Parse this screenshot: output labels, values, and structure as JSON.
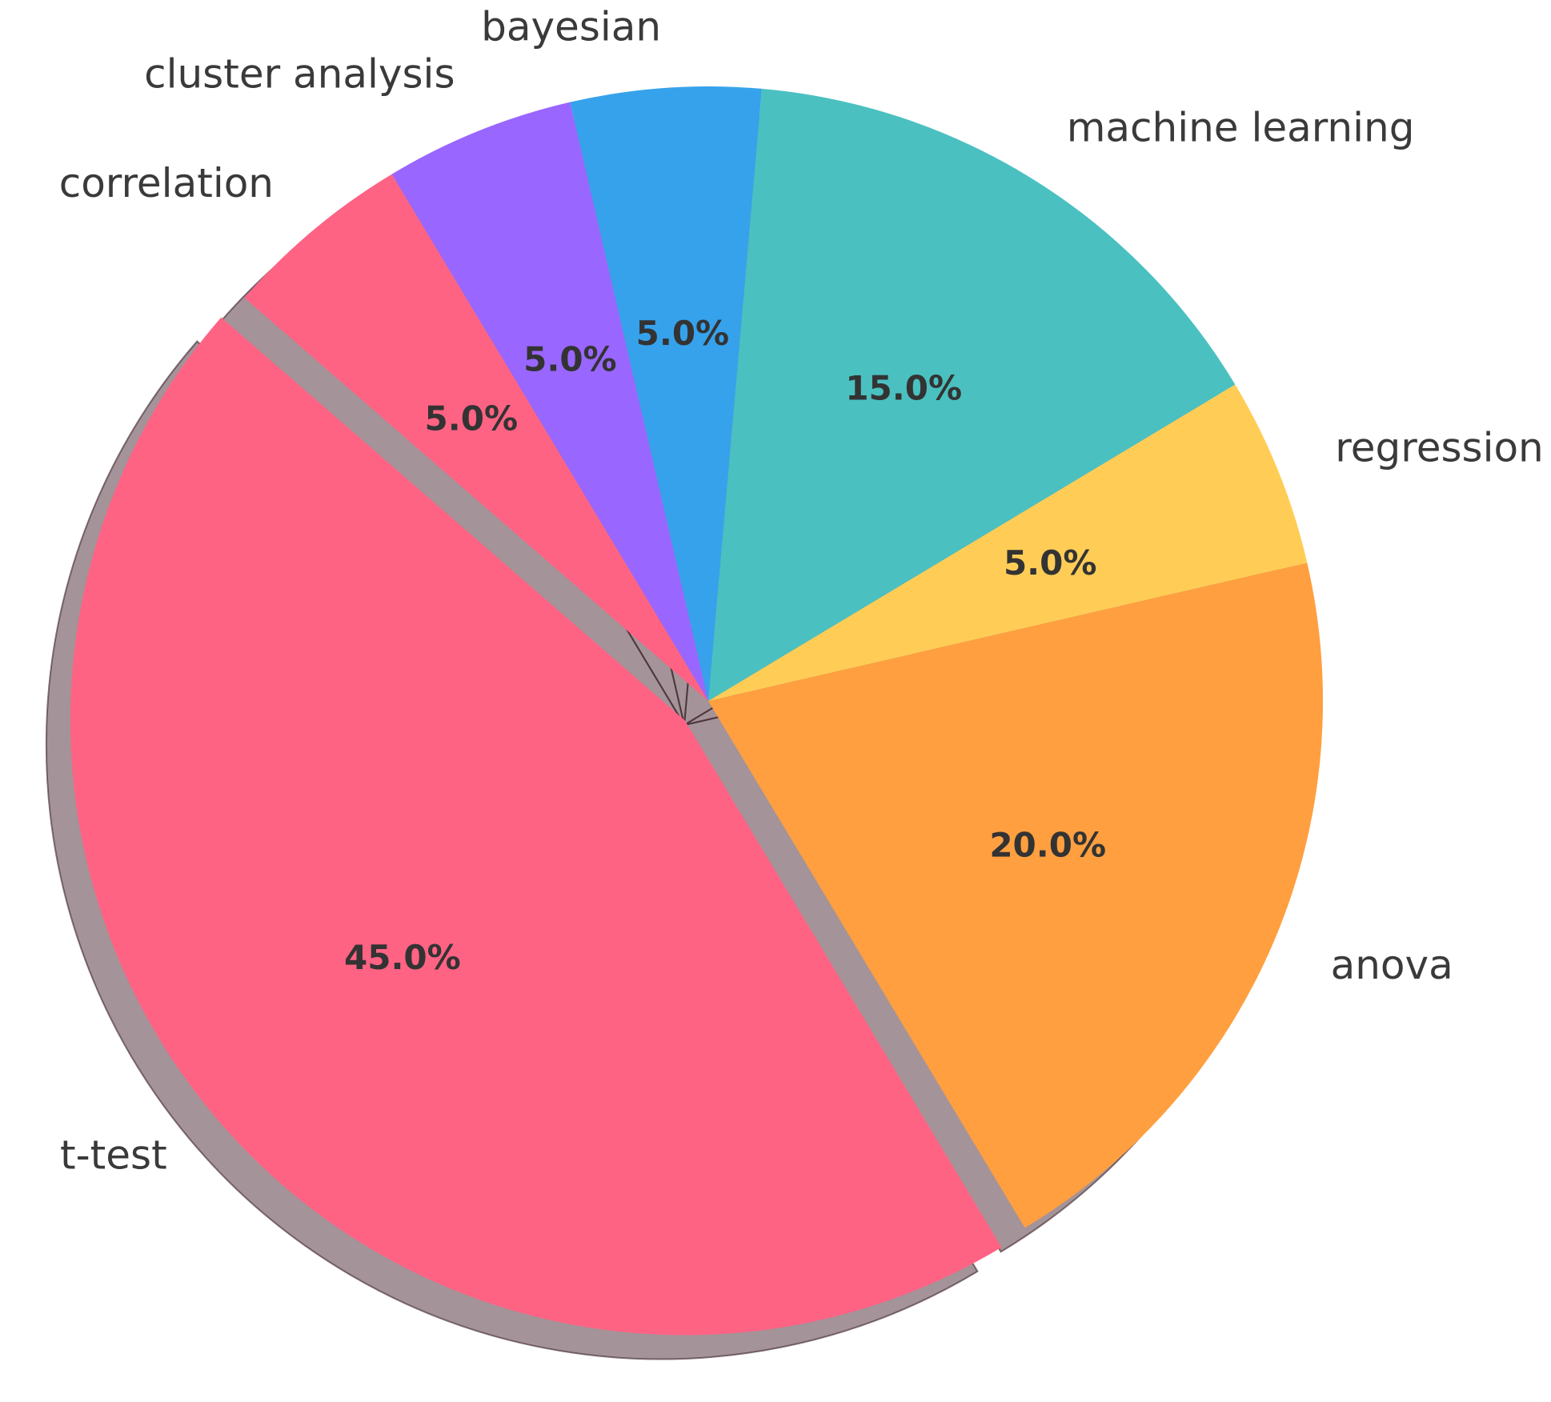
{
  "chart_data": {
    "type": "pie",
    "title": "",
    "start_angle_deg": 139,
    "exploded": [
      "t-test"
    ],
    "shadow": true,
    "slices": [
      {
        "label": "t-test",
        "value": 45.0,
        "pct_text": "45.0%",
        "color": "#FF6384"
      },
      {
        "label": "anova",
        "value": 20.0,
        "pct_text": "20.0%",
        "color": "#FF9F40"
      },
      {
        "label": "regression",
        "value": 5.0,
        "pct_text": "5.0%",
        "color": "#FFCD56"
      },
      {
        "label": "machine learning",
        "value": 15.0,
        "pct_text": "15.0%",
        "color": "#4BC0C0"
      },
      {
        "label": "bayesian",
        "value": 5.0,
        "pct_text": "5.0%",
        "color": "#36A2EB"
      },
      {
        "label": "cluster analysis",
        "value": 5.0,
        "pct_text": "5.0%",
        "color": "#9966FF"
      },
      {
        "label": "correlation",
        "value": 5.0,
        "pct_text": "5.0%",
        "color": "#FF6384"
      }
    ]
  }
}
